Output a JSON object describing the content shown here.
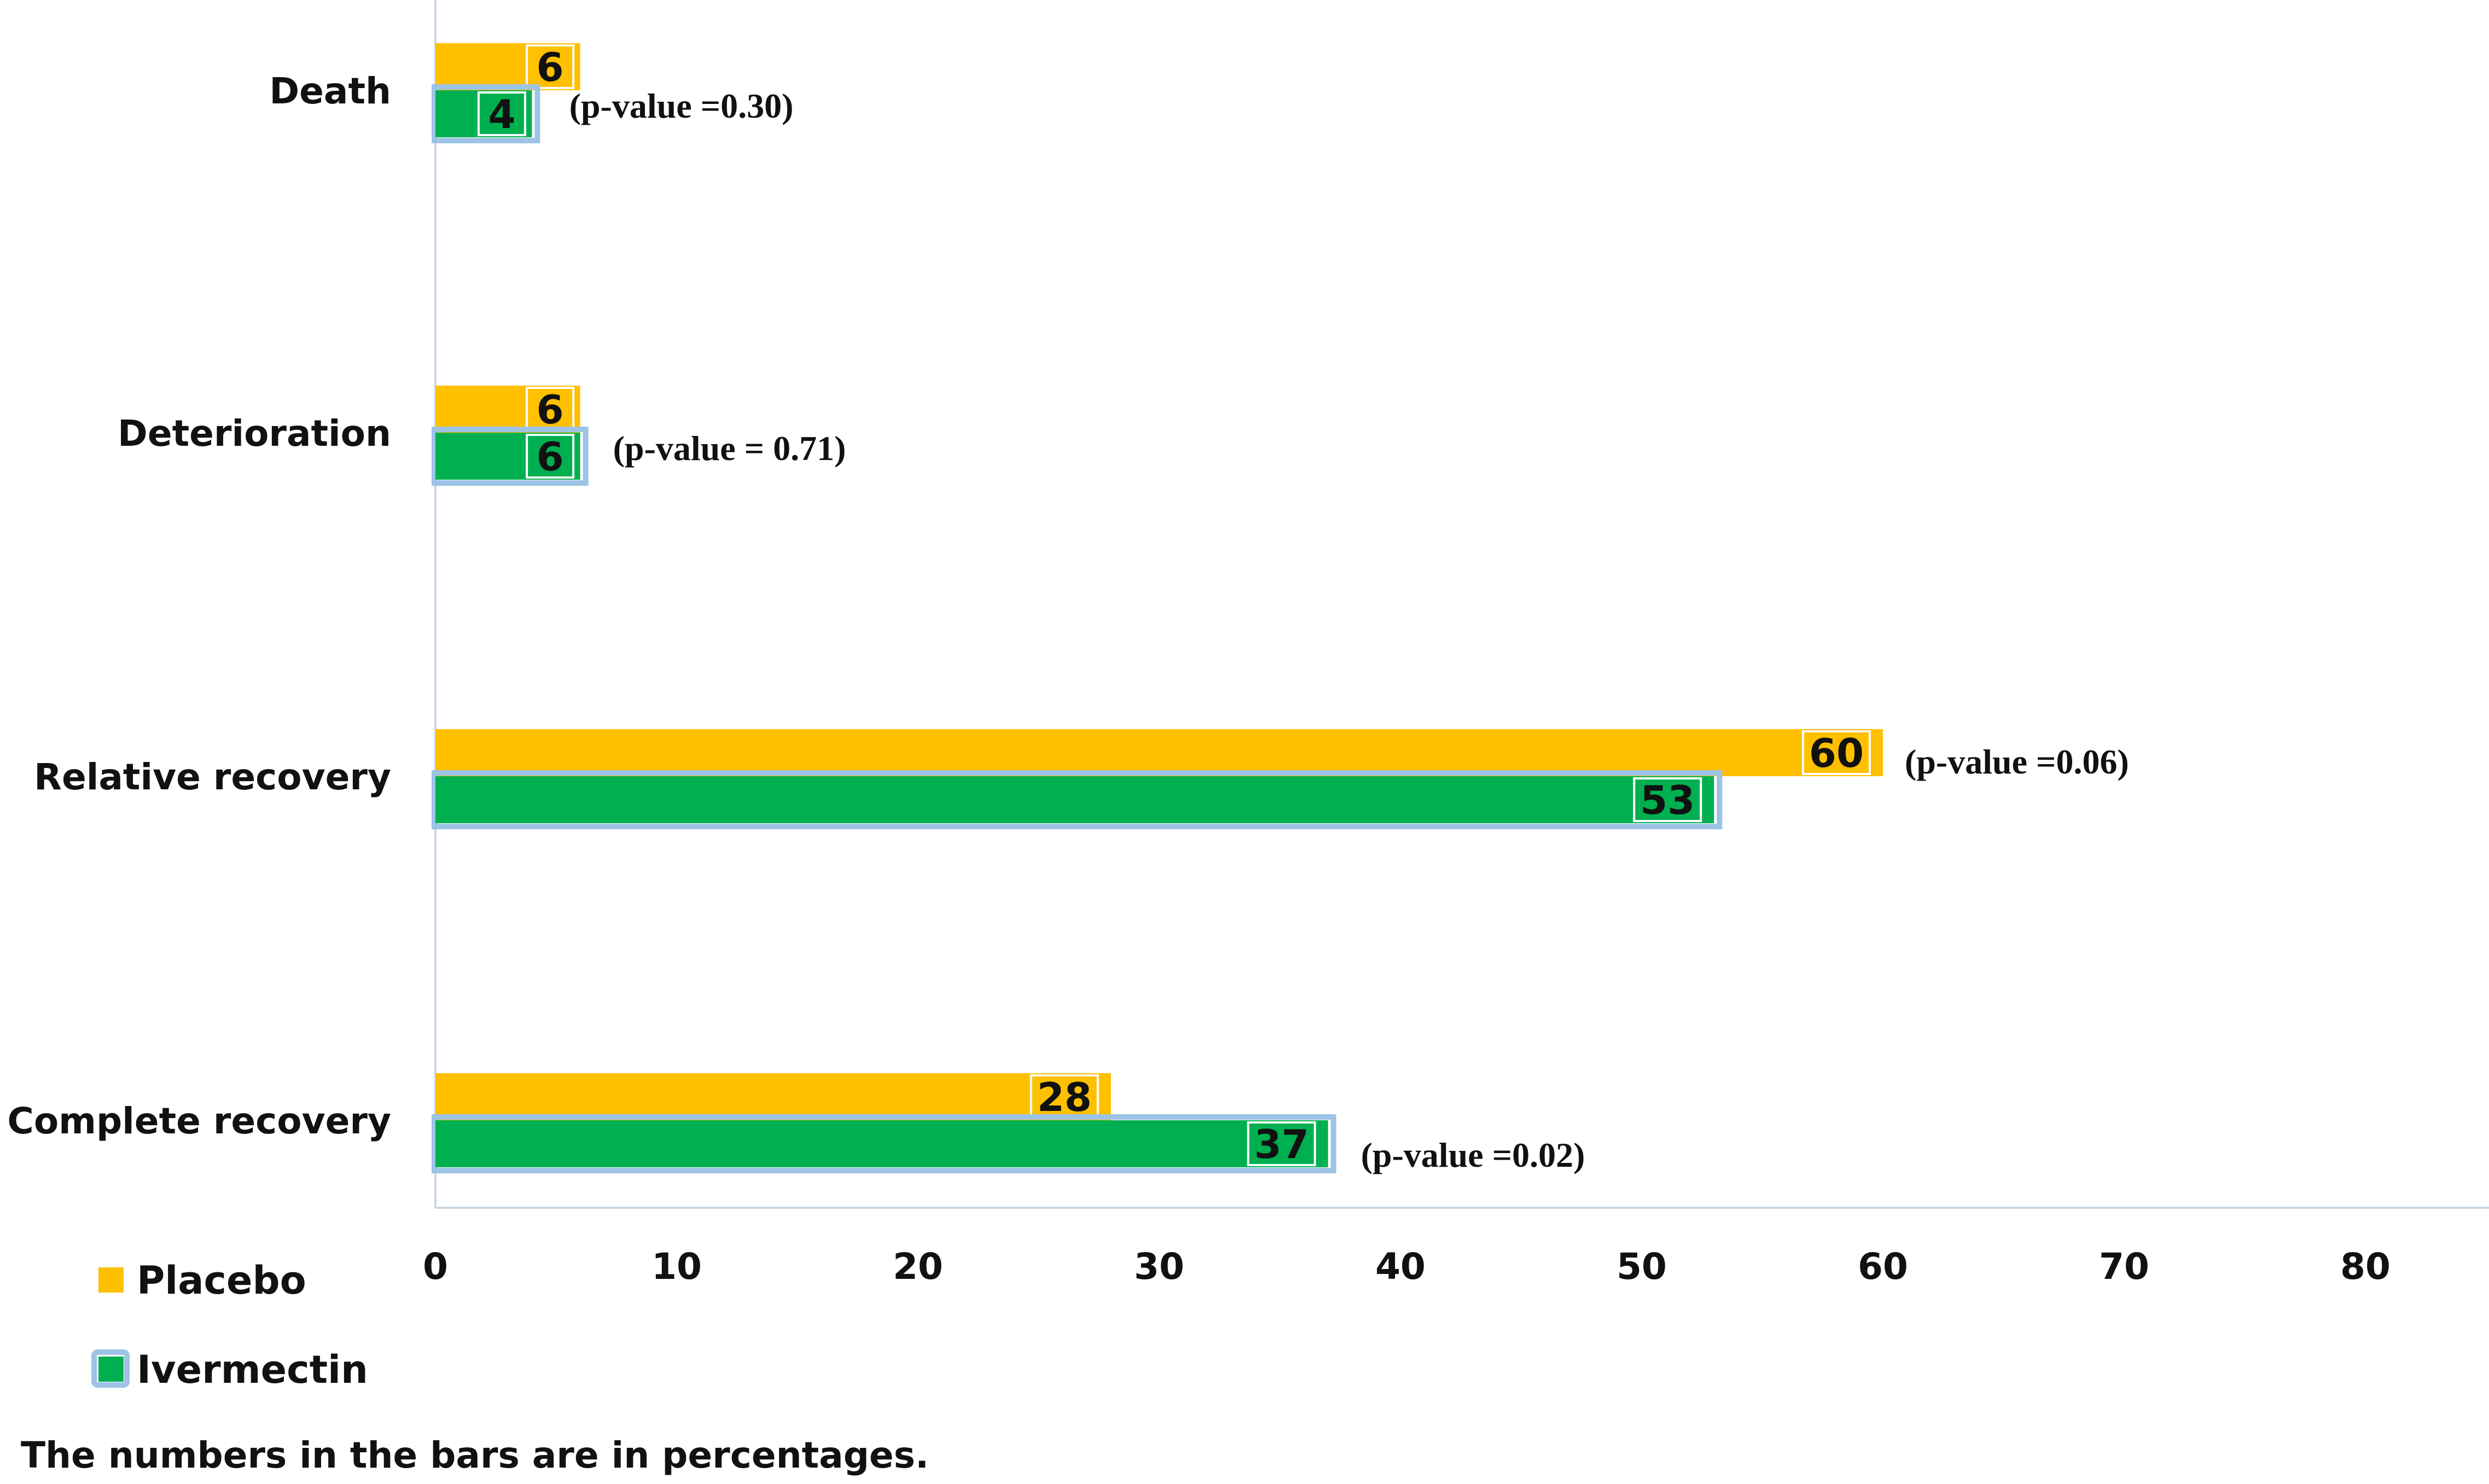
{
  "colors": {
    "placebo": "#FFC000",
    "ivermectin": "#00B050",
    "ivermectin_outline": "#9DC3E6",
    "axis": "#C8D6E3",
    "label_box": "#FFFFFF"
  },
  "chart_data": {
    "type": "bar",
    "orientation": "horizontal",
    "categories": [
      "Death",
      "Deterioration",
      "Relative recovery",
      "Complete recovery"
    ],
    "series": [
      {
        "name": "Placebo",
        "values": [
          6,
          6,
          60,
          28
        ]
      },
      {
        "name": "Ivermectin",
        "values": [
          4,
          6,
          53,
          37
        ]
      }
    ],
    "p_values": [
      "(p-value =0.30)",
      "(p-value = 0.71)",
      "(p-value =0.06)",
      "(p-value =0.02)"
    ],
    "xlim": [
      0,
      85
    ],
    "x_ticks": [
      0,
      10,
      20,
      30,
      40,
      50,
      60,
      70,
      80
    ],
    "grid": false,
    "legend_position": "bottom-left",
    "note": "The numbers in the bars are in percentages."
  }
}
